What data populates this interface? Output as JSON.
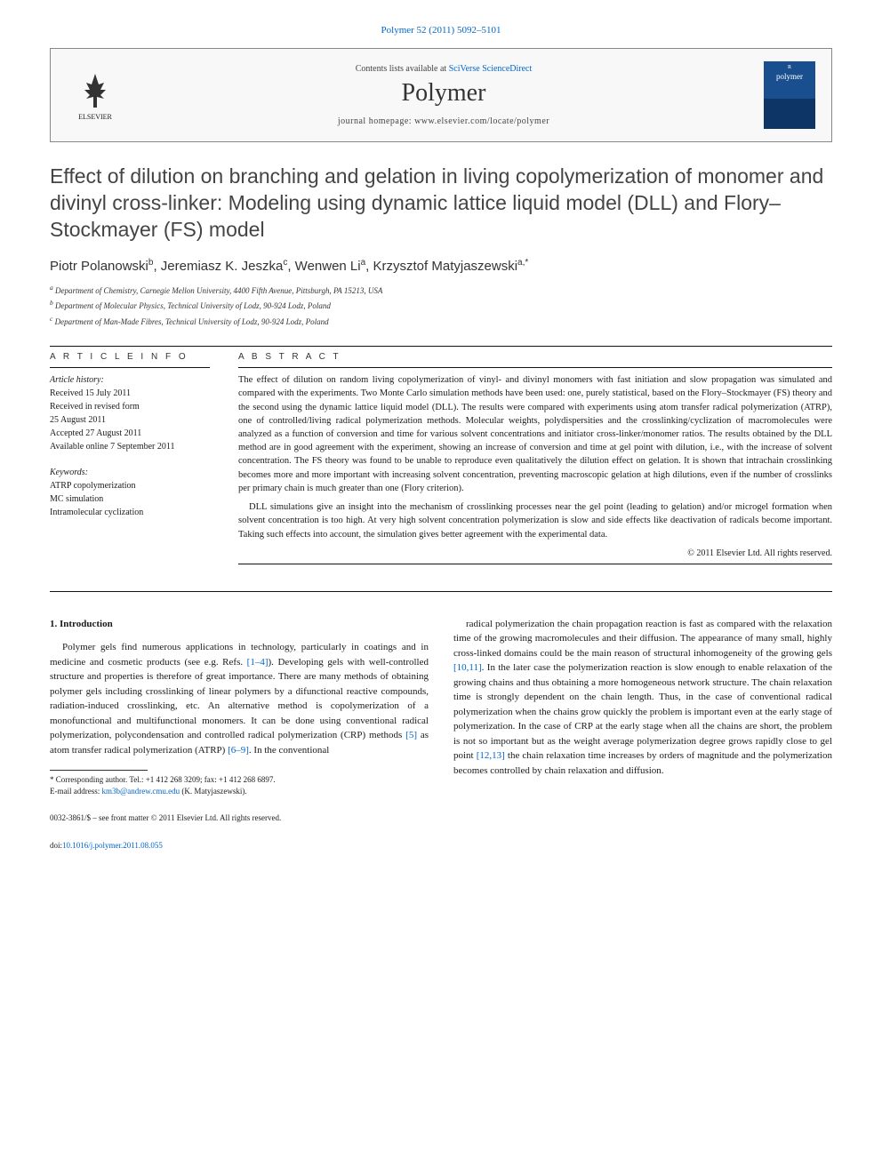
{
  "citation": "Polymer 52 (2011) 5092–5101",
  "header": {
    "contents_prefix": "Contents lists available at ",
    "contents_link": "SciVerse ScienceDirect",
    "journal": "Polymer",
    "homepage_prefix": "journal homepage: ",
    "homepage_url": "www.elsevier.com/locate/polymer",
    "publisher": "ELSEVIER",
    "cover_top": "R",
    "cover_title": "polymer"
  },
  "title": "Effect of dilution on branching and gelation in living copolymerization of monomer and divinyl cross-linker: Modeling using dynamic lattice liquid model (DLL) and Flory–Stockmayer (FS) model",
  "authors_html": "Piotr Polanowski<sup>b</sup>, Jeremiasz K. Jeszka<sup>c</sup>, Wenwen Li<sup>a</sup>, Krzysztof Matyjaszewski<sup>a,*</sup>",
  "affiliations": [
    "a Department of Chemistry, Carnegie Mellon University, 4400 Fifth Avenue, Pittsburgh, PA 15213, USA",
    "b Department of Molecular Physics, Technical University of Lodz, 90-924 Lodz, Poland",
    "c Department of Man-Made Fibres, Technical University of Lodz, 90-924 Lodz, Poland"
  ],
  "info": {
    "heading": "A R T I C L E   I N F O",
    "history_label": "Article history:",
    "history": [
      "Received 15 July 2011",
      "Received in revised form",
      "25 August 2011",
      "Accepted 27 August 2011",
      "Available online 7 September 2011"
    ],
    "keywords_label": "Keywords:",
    "keywords": [
      "ATRP copolymerization",
      "MC simulation",
      "Intramolecular cyclization"
    ]
  },
  "abstract": {
    "heading": "A B S T R A C T",
    "paragraphs": [
      "The effect of dilution on random living copolymerization of vinyl- and divinyl monomers with fast initiation and slow propagation was simulated and compared with the experiments. Two Monte Carlo simulation methods have been used: one, purely statistical, based on the Flory–Stockmayer (FS) theory and the second using the dynamic lattice liquid model (DLL). The results were compared with experiments using atom transfer radical polymerization (ATRP), one of controlled/living radical polymerization methods. Molecular weights, polydispersities and the crosslinking/cyclization of macromolecules were analyzed as a function of conversion and time for various solvent concentrations and initiator cross-linker/monomer ratios. The results obtained by the DLL method are in good agreement with the experiment, showing an increase of conversion and time at gel point with dilution, i.e., with the increase of solvent concentration. The FS theory was found to be unable to reproduce even qualitatively the dilution effect on gelation. It is shown that intrachain crosslinking becomes more and more important with increasing solvent concentration, preventing macroscopic gelation at high dilutions, even if the number of crosslinks per primary chain is much greater than one (Flory criterion).",
      "DLL simulations give an insight into the mechanism of crosslinking processes near the gel point (leading to gelation) and/or microgel formation when solvent concentration is too high. At very high solvent concentration polymerization is slow and side effects like deactivation of radicals become important. Taking such effects into account, the simulation gives better agreement with the experimental data."
    ],
    "copyright": "© 2011 Elsevier Ltd. All rights reserved."
  },
  "body": {
    "section_number": "1.",
    "section_title": "Introduction",
    "left_refs": {
      "r1": "[1–4]",
      "r2": "[5]",
      "r3": "[6–9]"
    },
    "left": "Polymer gels find numerous applications in technology, particularly in coatings and in medicine and cosmetic products (see e.g. Refs. {r1}). Developing gels with well-controlled structure and properties is therefore of great importance. There are many methods of obtaining polymer gels including crosslinking of linear polymers by a difunctional reactive compounds, radiation-induced crosslinking, etc. An alternative method is copolymerization of a monofunctional and multifunctional monomers. It can be done using conventional radical polymerization, polycondensation and controlled radical polymerization (CRP) methods {r2} as atom transfer radical polymerization (ATRP) {r3}. In the conventional",
    "right_refs": {
      "r4": "[10,11]",
      "r5": "[12,13]"
    },
    "right": "radical polymerization the chain propagation reaction is fast as compared with the relaxation time of the growing macromolecules and their diffusion. The appearance of many small, highly cross-linked domains could be the main reason of structural inhomogeneity of the growing gels {r4}. In the later case the polymerization reaction is slow enough to enable relaxation of the growing chains and thus obtaining a more homogeneous network structure. The chain relaxation time is strongly dependent on the chain length. Thus, in the case of conventional radical polymerization when the chains grow quickly the problem is important even at the early stage of polymerization. In the case of CRP at the early stage when all the chains are short, the problem is not so important but as the weight average polymerization degree grows rapidly close to gel point {r5} the chain relaxation time increases by orders of magnitude and the polymerization becomes controlled by chain relaxation and diffusion."
  },
  "footnote": {
    "corr": "* Corresponding author. Tel.: +1 412 268 3209; fax: +1 412 268 6897.",
    "email_label": "E-mail address: ",
    "email": "km3b@andrew.cmu.edu",
    "email_suffix": " (K. Matyjaszewski)."
  },
  "bottom": {
    "issn": "0032-3861/$ – see front matter © 2011 Elsevier Ltd. All rights reserved.",
    "doi_prefix": "doi:",
    "doi": "10.1016/j.polymer.2011.08.055"
  },
  "colors": {
    "link": "#0066cc",
    "text": "#1a1a1a",
    "border": "#888888"
  }
}
